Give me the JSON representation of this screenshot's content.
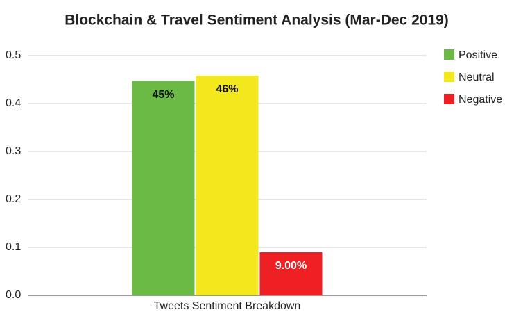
{
  "chart_data": {
    "type": "bar",
    "title": "Blockchain & Travel Sentiment Analysis (Mar-Dec 2019)",
    "categories": [
      "Tweets Sentiment Breakdown"
    ],
    "series": [
      {
        "name": "Positive",
        "color": "#6aba45",
        "label_color": "#111111",
        "values": [
          0.447
        ],
        "value_labels": [
          "45%"
        ]
      },
      {
        "name": "Neutral",
        "color": "#f2e81c",
        "label_color": "#111111",
        "values": [
          0.458
        ],
        "value_labels": [
          "46%"
        ]
      },
      {
        "name": "Negative",
        "color": "#ee2024",
        "label_color": "#ffffff",
        "values": [
          0.09
        ],
        "value_labels": [
          "9.00%"
        ]
      }
    ],
    "ylim": [
      0,
      0.5
    ],
    "yticks": [
      {
        "value": 0,
        "label": "0.0"
      },
      0.1,
      0.2,
      0.3,
      0.4,
      0.5
    ],
    "grid": true,
    "legend": "right"
  }
}
